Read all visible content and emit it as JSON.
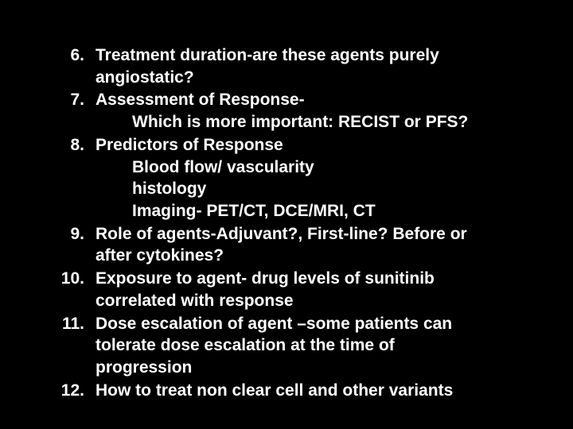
{
  "slide": {
    "background_color": "#000000",
    "text_color": "#ffffff",
    "font_family": "Arial",
    "font_size_pt": 21,
    "font_weight": "bold",
    "items": [
      {
        "num": "6.",
        "lines": [
          "Treatment duration-are these agents purely",
          "angiostatic?"
        ],
        "sublines": []
      },
      {
        "num": "7.",
        "lines": [
          "Assessment of Response-"
        ],
        "sublines": [
          "Which is more important: RECIST or PFS?"
        ]
      },
      {
        "num": "8.",
        "lines": [
          "Predictors of Response"
        ],
        "sublines": [
          "Blood flow/ vascularity",
          "histology",
          "Imaging- PET/CT, DCE/MRI, CT"
        ]
      },
      {
        "num": "9.",
        "lines": [
          "Role of agents-Adjuvant?, First-line? Before or",
          "after cytokines?"
        ],
        "sublines": []
      },
      {
        "num": "10.",
        "lines": [
          "Exposure to agent- drug levels of sunitinib",
          "correlated with response"
        ],
        "sublines": []
      },
      {
        "num": "11.",
        "lines": [
          "Dose escalation of agent –some patients can",
          "tolerate dose escalation at the time of",
          "progression"
        ],
        "sublines": []
      },
      {
        "num": "12.",
        "lines": [
          "How to treat non clear cell and other variants"
        ],
        "sublines": []
      }
    ]
  }
}
